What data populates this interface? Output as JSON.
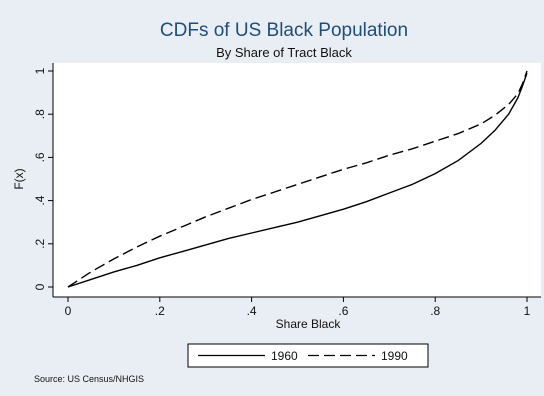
{
  "chart_data": {
    "type": "line",
    "title": "CDFs of US Black Population",
    "subtitle": "By Share of Tract Black",
    "xlabel": "Share Black",
    "ylabel": "F(x)",
    "xlim": [
      0,
      1
    ],
    "ylim": [
      0,
      1
    ],
    "x_ticks": [
      0,
      0.2,
      0.4,
      0.6,
      0.8,
      1
    ],
    "x_tick_labels": [
      "0",
      ".2",
      ".4",
      ".6",
      ".8",
      "1"
    ],
    "y_ticks": [
      0,
      0.2,
      0.4,
      0.6,
      0.8,
      1
    ],
    "y_tick_labels": [
      "0",
      ".2",
      ".4",
      ".6",
      ".8",
      "1"
    ],
    "grid": false,
    "legend_position": "bottom",
    "note": "Source:  US Census/NHGIS",
    "series": [
      {
        "name": "1960",
        "style": "solid",
        "color": "#000000",
        "x": [
          0,
          0.05,
          0.1,
          0.15,
          0.2,
          0.25,
          0.3,
          0.35,
          0.4,
          0.45,
          0.5,
          0.55,
          0.6,
          0.65,
          0.7,
          0.75,
          0.8,
          0.85,
          0.9,
          0.93,
          0.96,
          0.98,
          0.99,
          1.0
        ],
        "y": [
          0,
          0.035,
          0.07,
          0.1,
          0.135,
          0.165,
          0.195,
          0.225,
          0.25,
          0.275,
          0.3,
          0.33,
          0.36,
          0.395,
          0.435,
          0.475,
          0.525,
          0.585,
          0.665,
          0.725,
          0.8,
          0.875,
          0.93,
          0.99
        ]
      },
      {
        "name": "1990",
        "style": "dashed",
        "color": "#000000",
        "x": [
          0,
          0.05,
          0.1,
          0.15,
          0.2,
          0.25,
          0.3,
          0.35,
          0.4,
          0.45,
          0.5,
          0.55,
          0.6,
          0.65,
          0.7,
          0.75,
          0.8,
          0.85,
          0.9,
          0.93,
          0.96,
          0.98,
          0.99,
          1.0
        ],
        "y": [
          0,
          0.07,
          0.13,
          0.185,
          0.235,
          0.28,
          0.325,
          0.365,
          0.405,
          0.44,
          0.475,
          0.51,
          0.545,
          0.575,
          0.61,
          0.64,
          0.675,
          0.71,
          0.755,
          0.795,
          0.845,
          0.895,
          0.94,
          1.0
        ]
      }
    ]
  }
}
